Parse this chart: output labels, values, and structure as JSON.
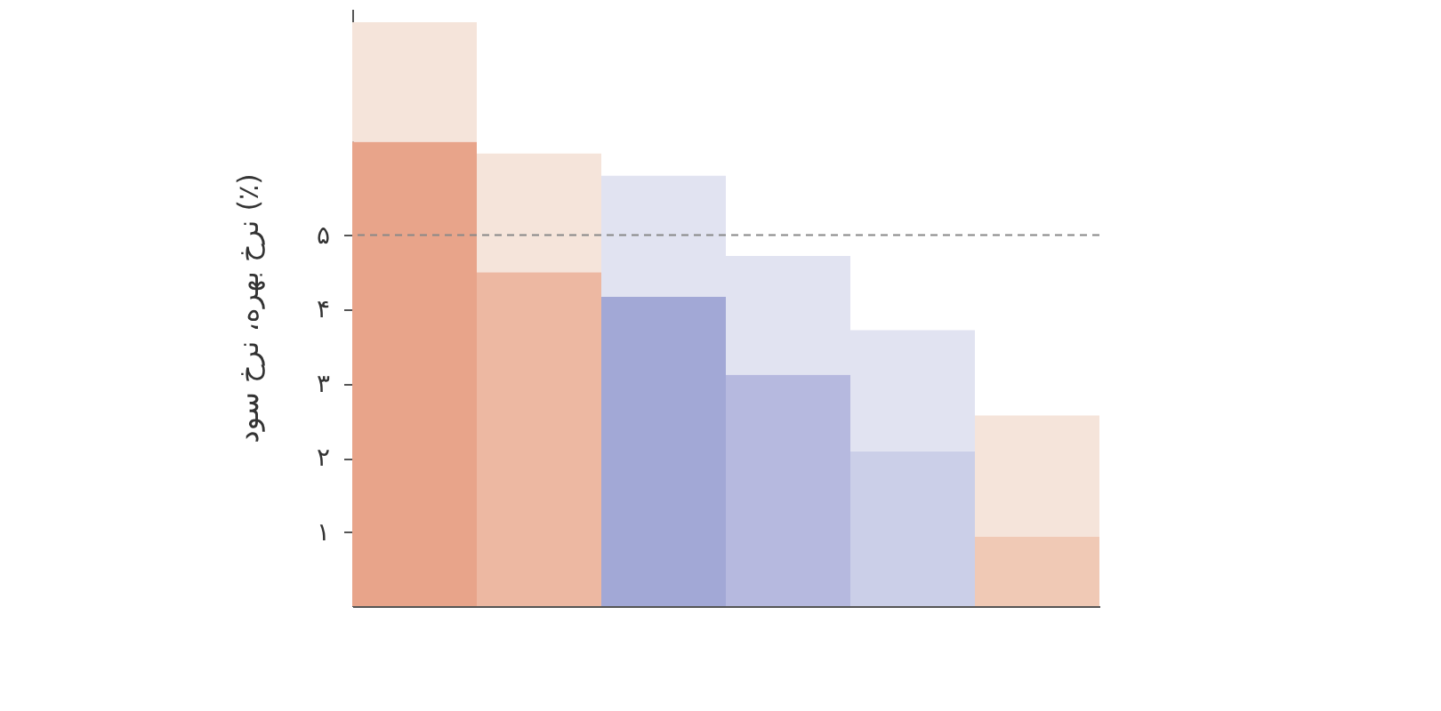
{
  "chart_data": {
    "type": "bar",
    "stacked": true,
    "ylabel": "نرخ بهره، نرخ سود (٪)",
    "categories": [
      null,
      null,
      null,
      null,
      null,
      null
    ],
    "series": [
      {
        "values": [
          6.26,
          4.5,
          4.17,
          3.12,
          2.09,
          0.94
        ],
        "colors": [
          "#e8a48a",
          "#edb8a2",
          "#a2a8d6",
          "#b6b9df",
          "#cbcfe8",
          "#f0c9b5"
        ]
      },
      {
        "values": [
          1.61,
          1.6,
          1.63,
          1.6,
          1.63,
          1.63
        ],
        "colors": [
          "#f5e4da",
          "#f5e4da",
          "#e1e3f1",
          "#e1e3f1",
          "#e1e3f1",
          "#f5e4da"
        ]
      }
    ],
    "ylim": [
      0,
      8.05
    ],
    "yticks": [
      {
        "value": 1,
        "label": "۱"
      },
      {
        "value": 2,
        "label": "۲"
      },
      {
        "value": 3,
        "label": "۳"
      },
      {
        "value": 4,
        "label": "۴"
      },
      {
        "value": 5,
        "label": "۵"
      }
    ],
    "ref_lines": [
      {
        "axis": "y",
        "value": 5,
        "color": "#888888",
        "line_style": "dashed"
      }
    ],
    "grid": false
  }
}
